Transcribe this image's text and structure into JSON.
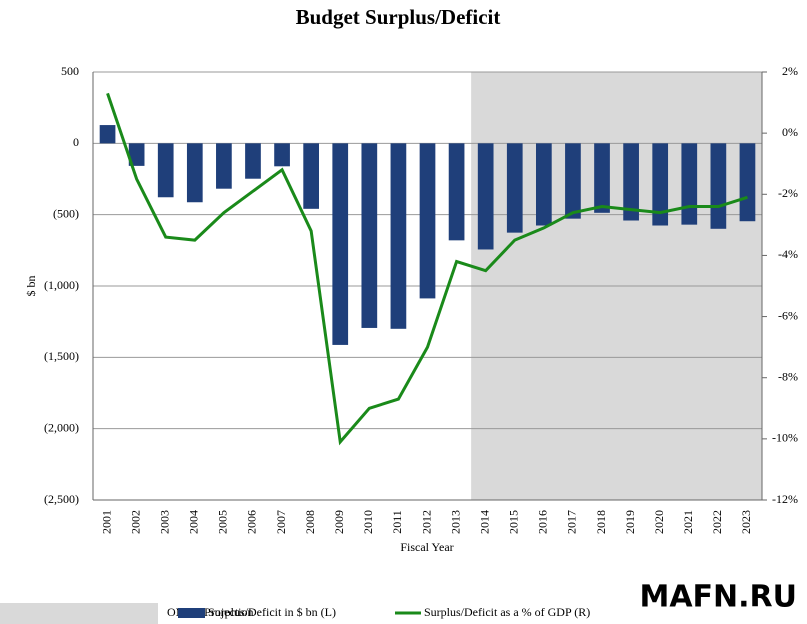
{
  "chart_data": {
    "type": "bar-line",
    "title": "Budget Surplus/Deficit",
    "y_label": "$ bn",
    "x_label": "Fiscal Year",
    "categories": [
      "2001",
      "2002",
      "2003",
      "2004",
      "2005",
      "2006",
      "2007",
      "2008",
      "2009",
      "2010",
      "2011",
      "2012",
      "2013",
      "2014",
      "2015",
      "2016",
      "2017",
      "2018",
      "2019",
      "2020",
      "2021",
      "2022",
      "2023"
    ],
    "series": [
      {
        "name": "Surplus/Deficit in $ bn (L)",
        "type": "bar",
        "color": "#1f3f7a",
        "values": [
          128,
          -158,
          -378,
          -413,
          -318,
          -248,
          -161,
          -459,
          -1413,
          -1294,
          -1300,
          -1087,
          -680,
          -744,
          -626,
          -576,
          -528,
          -487,
          -541,
          -576,
          -570,
          -599,
          -546
        ]
      },
      {
        "name": "Surplus/Deficit as a % of GDP (R)",
        "type": "line",
        "axis": "y2",
        "color": "#1a8a1a",
        "values": [
          1.3,
          -1.5,
          -3.4,
          -3.5,
          -2.6,
          -1.9,
          -1.2,
          -3.2,
          -10.1,
          -9.0,
          -8.7,
          -7.0,
          -4.2,
          -4.5,
          -3.5,
          -3.1,
          -2.6,
          -2.4,
          -2.5,
          -2.6,
          -2.4,
          -2.4,
          -2.1
        ]
      }
    ],
    "ylim": [
      -2500,
      500
    ],
    "yticks": [
      {
        "value": 500,
        "label": "500"
      },
      0,
      {
        "value": -500,
        "label": "(500)"
      },
      {
        "value": -1000,
        "label": "(1,000)"
      },
      {
        "value": -1500,
        "label": "(1,500)"
      },
      {
        "value": -2000,
        "label": "(2,000)"
      },
      {
        "value": -2500,
        "label": "(2,500)"
      }
    ],
    "negative_tick_color": "#c00000",
    "y2lim": [
      -12,
      2
    ],
    "y2ticks": [
      {
        "value": 2,
        "label": "2%"
      },
      {
        "value": 0,
        "label": "0%"
      },
      {
        "value": -2,
        "label": "-2%"
      },
      {
        "value": -4,
        "label": "-4%"
      },
      {
        "value": -6,
        "label": "-6%"
      },
      {
        "value": -8,
        "label": "-8%"
      },
      {
        "value": -10,
        "label": "-10%"
      },
      {
        "value": -12,
        "label": "-12%"
      }
    ],
    "grid": true,
    "projection": {
      "label": "OMB's Projection",
      "start": "2014",
      "color": "#d9d9d9"
    },
    "watermark": "MAFN.RU"
  }
}
